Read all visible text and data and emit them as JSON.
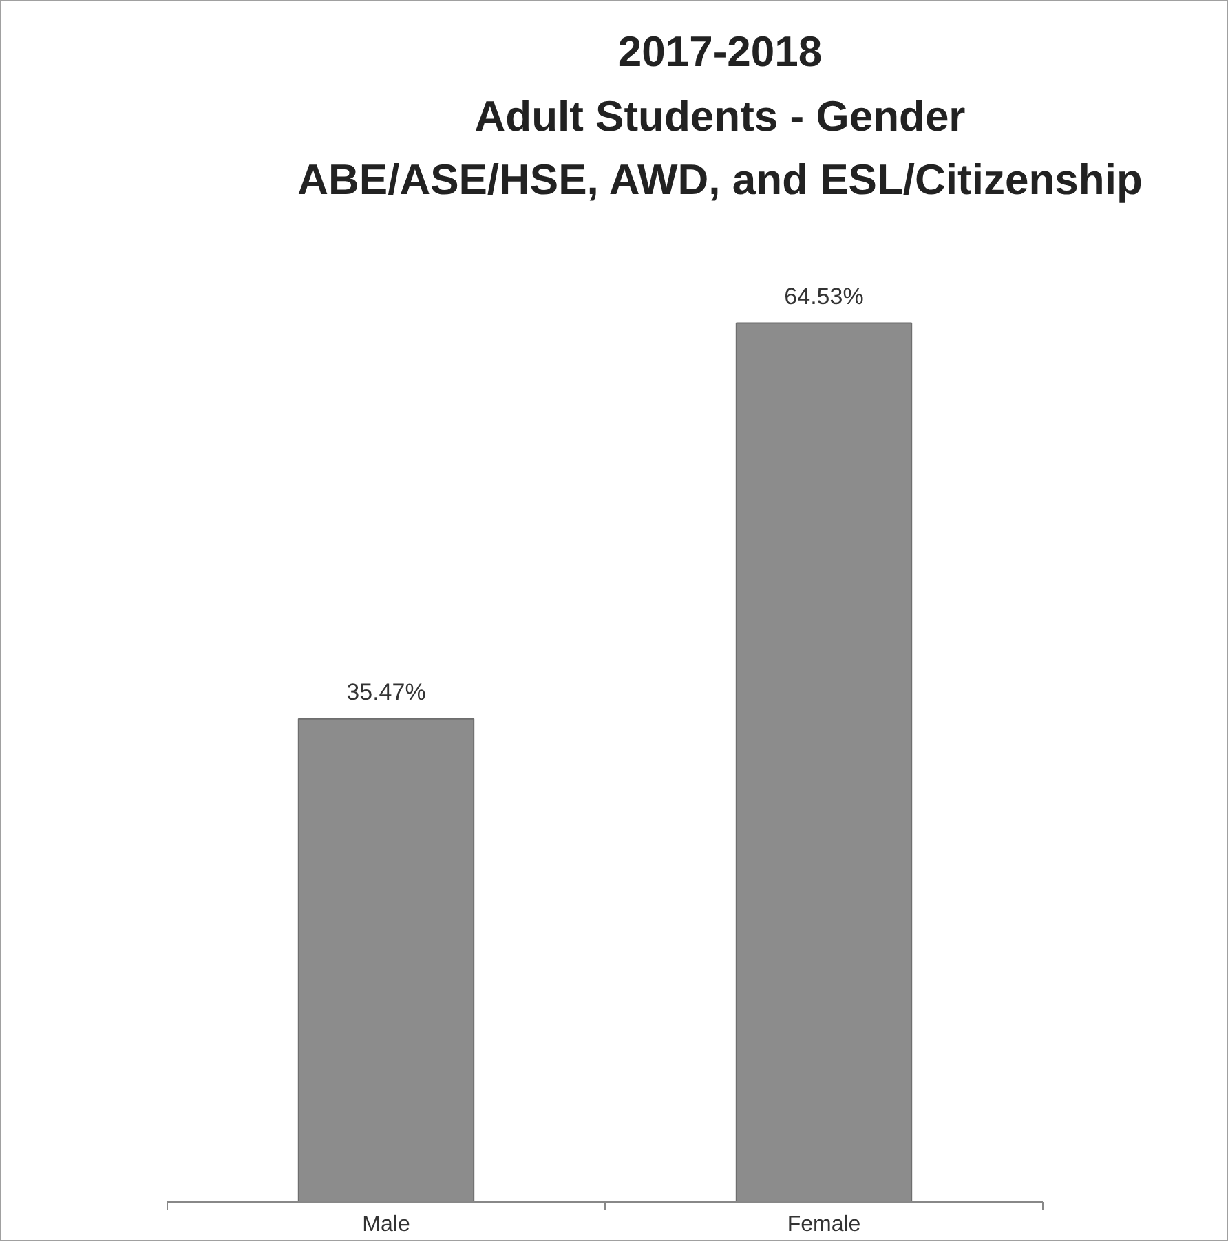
{
  "chart_data": {
    "type": "bar",
    "title": "2017-2018\nAdult Students - Gender\nABE/ASE/HSE, AWD, and ESL/Citizenship",
    "categories": [
      "Male",
      "Female"
    ],
    "values": [
      35.47,
      64.53
    ],
    "value_labels": [
      "35.47%",
      "64.53%"
    ],
    "color": "#8c8c8c",
    "tick_labels": "x"
  }
}
